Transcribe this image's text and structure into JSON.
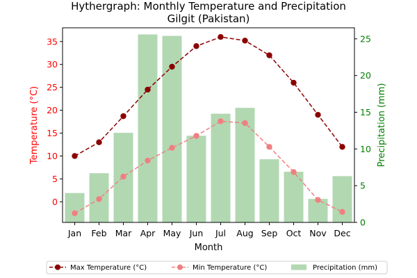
{
  "chart_data": {
    "type": "bar+line",
    "title": "Hythergraph: Monthly Temperature and Precipitation\nGilgit (Pakistan)",
    "xlabel": "Month",
    "y_left_label": "Temperature (°C)",
    "y_right_label": "Precipitation (mm)",
    "categories": [
      "Jan",
      "Feb",
      "Mar",
      "Apr",
      "May",
      "Jun",
      "Jul",
      "Aug",
      "Sep",
      "Oct",
      "Nov",
      "Dec"
    ],
    "y_left_range": [
      -4.5,
      38
    ],
    "y_left_ticks": [
      0,
      5,
      10,
      15,
      20,
      25,
      30,
      35
    ],
    "y_right_range": [
      0,
      26.5
    ],
    "y_right_ticks": [
      0,
      5,
      10,
      15,
      20,
      25
    ],
    "series": [
      {
        "name": "Max Temperature (°C)",
        "axis": "left",
        "kind": "line",
        "color": "#8b0000",
        "values": [
          10.0,
          13.0,
          18.7,
          24.5,
          29.5,
          34.0,
          36.0,
          35.2,
          32.0,
          26.0,
          19.0,
          12.0
        ]
      },
      {
        "name": "Min Temperature (°C)",
        "axis": "left",
        "kind": "line",
        "color": "#f08080",
        "values": [
          -2.5,
          0.6,
          5.5,
          9.0,
          11.8,
          14.4,
          17.6,
          17.2,
          12.0,
          6.5,
          0.4,
          -2.2
        ]
      },
      {
        "name": "Precipitation (mm)",
        "axis": "right",
        "kind": "bar",
        "color": "#b2d8b2",
        "values": [
          4.0,
          6.7,
          12.2,
          25.6,
          25.4,
          11.8,
          14.8,
          15.6,
          8.6,
          6.9,
          3.2,
          6.3
        ]
      }
    ],
    "legend_position": "bottom",
    "grid": false
  }
}
